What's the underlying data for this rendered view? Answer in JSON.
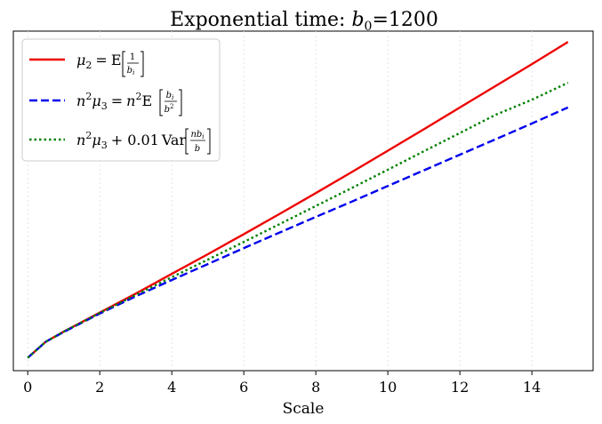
{
  "chart_data": {
    "type": "line",
    "title": "Exponential time: b0=1200",
    "title_parts": {
      "lead": "Exponential time: ",
      "var": "b",
      "sub": "0",
      "tail": "=1200"
    },
    "xlabel": "Scale",
    "ylabel": "",
    "xlim": [
      -0.4,
      15.7
    ],
    "ylim": [
      0.0,
      1.0
    ],
    "xticks": [
      0,
      2,
      4,
      6,
      8,
      10,
      12,
      14
    ],
    "grid": {
      "x": true,
      "y": false,
      "style": "dotted"
    },
    "legend": {
      "position": "top-left"
    },
    "series": [
      {
        "name": "μ2 = E[1/bi]",
        "legend_label": {
          "mu": "μ",
          "mu_sub": "2",
          "eq": "=",
          "E": "E",
          "num": "1",
          "den": "b",
          "den_sub": "i"
        },
        "color": "#ee0000",
        "dash": "solid",
        "x": [
          0,
          0.5,
          1,
          2,
          3,
          4,
          5,
          6,
          7,
          8,
          9,
          10,
          11,
          12,
          13,
          14,
          15
        ],
        "y": [
          0.038,
          0.085,
          0.115,
          0.171,
          0.227,
          0.285,
          0.343,
          0.402,
          0.462,
          0.523,
          0.585,
          0.648,
          0.711,
          0.775,
          0.839,
          0.903,
          0.968
        ]
      },
      {
        "name": "n²μ3 = n²E[bi/b²]",
        "legend_label": {
          "n": "n",
          "sq": "2",
          "mu": "μ",
          "mu_sub": "3",
          "eq": "=",
          "E": "E",
          "num": "b",
          "num_sub": "i",
          "den": "b",
          "den_sup": "2"
        },
        "color": "#0000ee",
        "dash": "dashed",
        "x": [
          0,
          0.5,
          1,
          2,
          3,
          4,
          5,
          6,
          7,
          8,
          9,
          10,
          11,
          12,
          13,
          14,
          15
        ],
        "y": [
          0.038,
          0.085,
          0.114,
          0.168,
          0.219,
          0.267,
          0.314,
          0.361,
          0.407,
          0.453,
          0.498,
          0.544,
          0.59,
          0.636,
          0.682,
          0.728,
          0.775
        ]
      },
      {
        "name": "n²μ3 + 0.01 Var[nbi/b]",
        "legend_label": {
          "n": "n",
          "sq": "2",
          "mu": "μ",
          "mu_sub": "3",
          "plus": "+ 0.01",
          "Var": "Var",
          "num": "nb",
          "num_sub": "i",
          "den": "b"
        },
        "color": "#008000",
        "dash": "dotted",
        "x": [
          0,
          0.5,
          1,
          2,
          3,
          4,
          5,
          6,
          7,
          8,
          9,
          10,
          11,
          12,
          13,
          14,
          15
        ],
        "y": [
          0.038,
          0.085,
          0.115,
          0.17,
          0.223,
          0.275,
          0.327,
          0.379,
          0.432,
          0.485,
          0.538,
          0.592,
          0.646,
          0.7,
          0.754,
          0.798,
          0.848
        ]
      }
    ]
  }
}
